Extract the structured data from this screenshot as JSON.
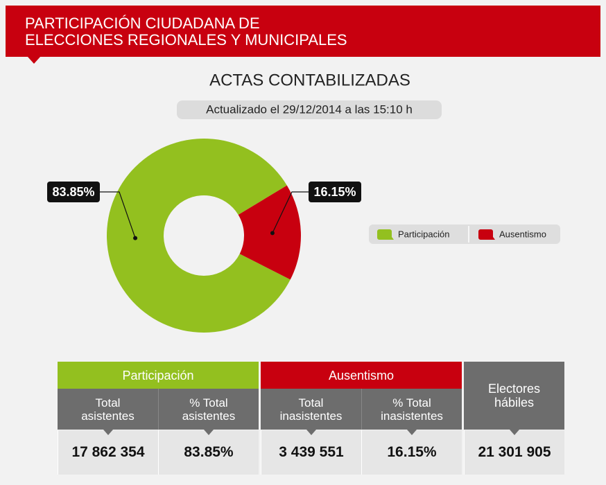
{
  "header": {
    "title_lines": [
      "PARTICIPACIÓN CIUDADANA DE",
      "ELECCIONES REGIONALES Y MUNICIPALES"
    ]
  },
  "chart_data": {
    "type": "pie",
    "donut": true,
    "title": "ACTAS CONTABILIZADAS",
    "subtitle": "Actualizado el 29/12/2014 a las 15:10 h",
    "categories": [
      "Participación",
      "Ausentismo"
    ],
    "values": [
      83.85,
      16.15
    ],
    "value_labels": [
      "83.85%",
      "16.15%"
    ],
    "colors": [
      "#93c01f",
      "#c8000f"
    ],
    "legend": "right"
  },
  "table": {
    "groups": [
      {
        "title": "Participación",
        "color": "#93c01f",
        "columns": [
          {
            "label": "Total asistentes",
            "value": "17 862 354"
          },
          {
            "label": "% Total asistentes",
            "value": "83.85%"
          }
        ]
      },
      {
        "title": "Ausentismo",
        "color": "#c8000f",
        "columns": [
          {
            "label": "Total inasistentes",
            "value": "3 439 551"
          },
          {
            "label": "% Total inasistentes",
            "value": "16.15%"
          }
        ]
      },
      {
        "title": "Electores hábiles",
        "color": "#6d6d6d",
        "columns": [
          {
            "value": "21 301 905"
          }
        ]
      }
    ]
  }
}
